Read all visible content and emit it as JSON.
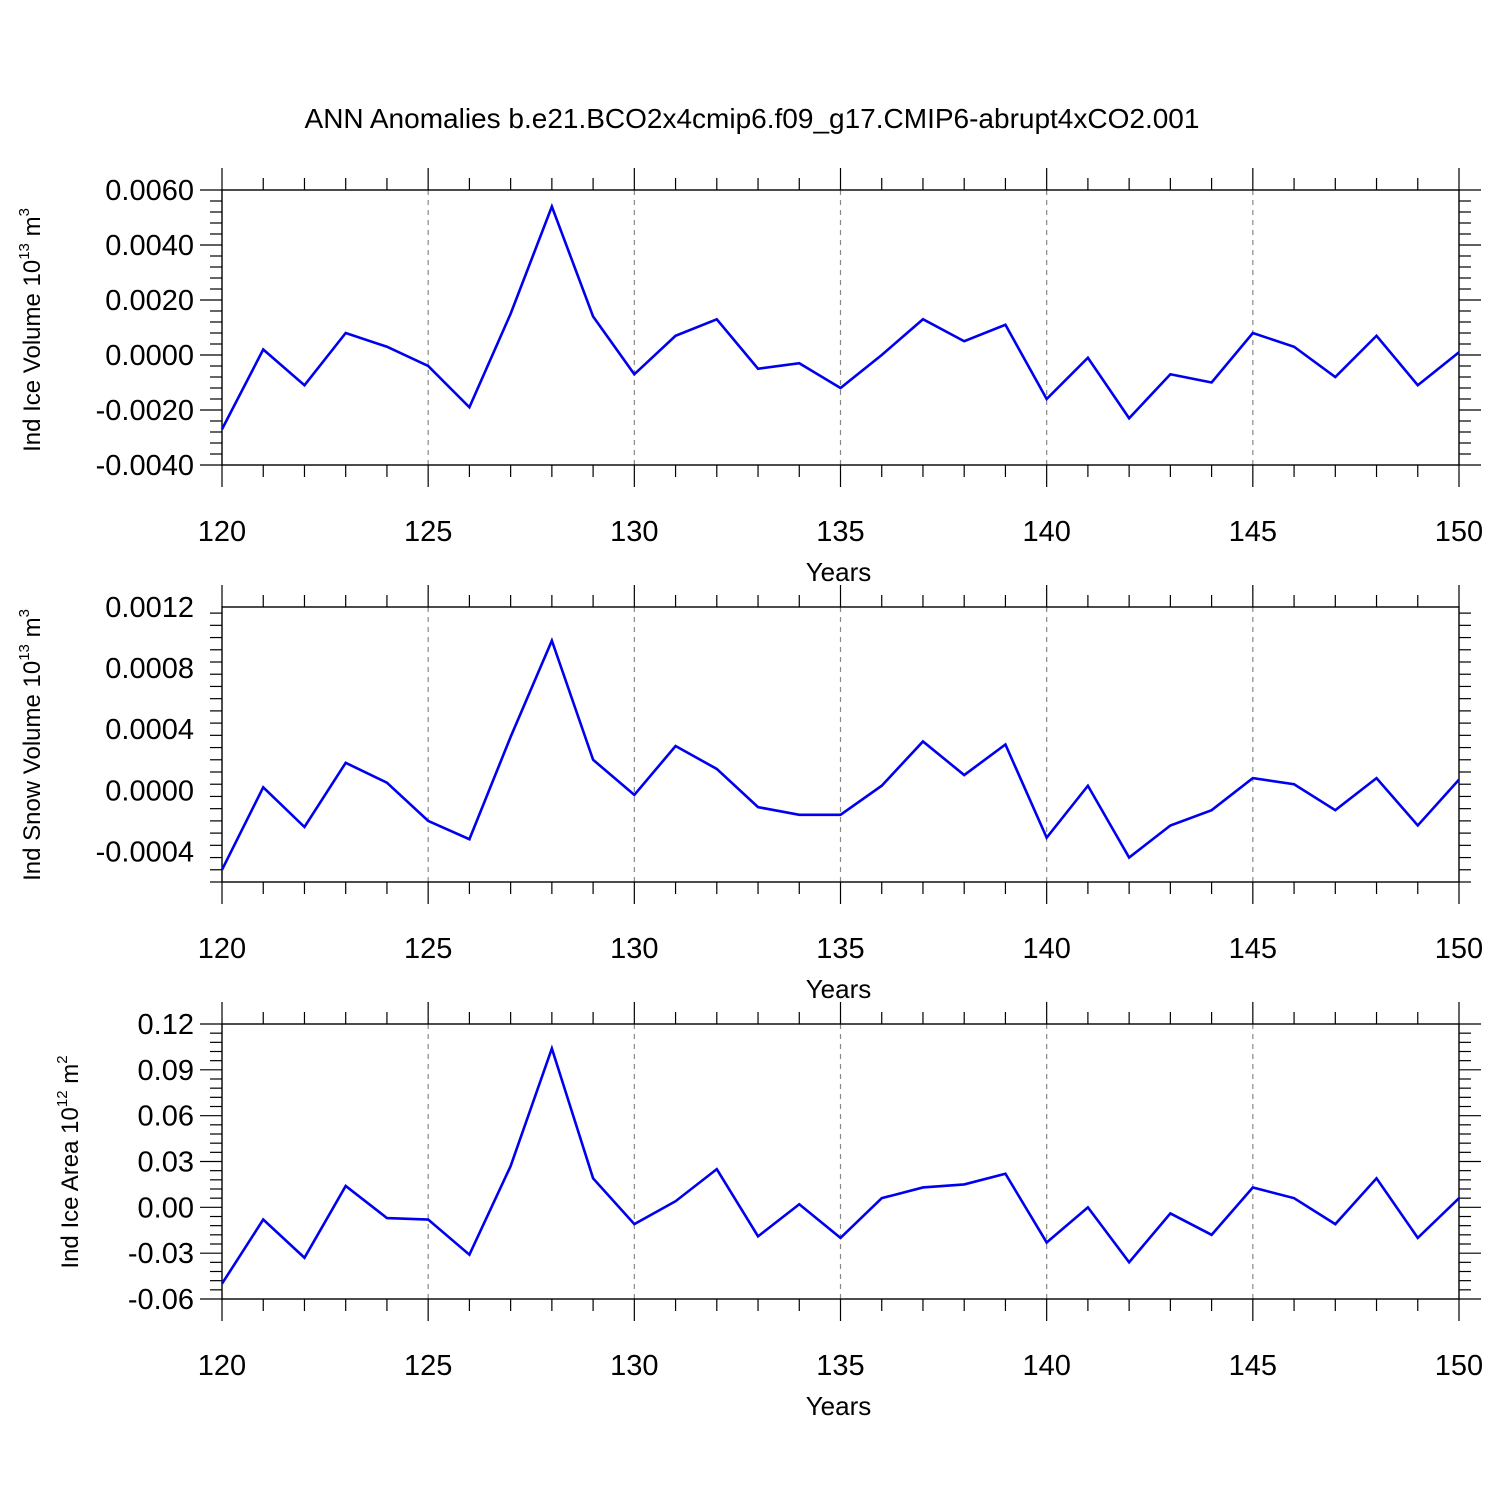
{
  "figure": {
    "title": "ANN Anomalies b.e21.BCO2x4cmip6.f09_g17.CMIP6-abrupt4xCO2.001"
  },
  "colors": {
    "line": "#0000ee",
    "axes": "#000000",
    "grid": "#888888"
  },
  "chart_data": [
    {
      "type": "line",
      "xlabel": "Years",
      "ylabel": {
        "text": "Ind Ice Volume 10",
        "sup": "13",
        "unit": " m",
        "unit_sup": "3"
      },
      "x": [
        120,
        121,
        122,
        123,
        124,
        125,
        126,
        127,
        128,
        129,
        130,
        131,
        132,
        133,
        134,
        135,
        136,
        137,
        138,
        139,
        140,
        141,
        142,
        143,
        144,
        145,
        146,
        147,
        148,
        149,
        150
      ],
      "series": [
        {
          "values": [
            -0.0027,
            0.0002,
            -0.0011,
            0.0008,
            0.0003,
            -0.0004,
            -0.0019,
            0.0015,
            0.0054,
            0.0014,
            -0.0007,
            0.0007,
            0.0013,
            -0.0005,
            -0.0003,
            -0.0012,
            0.0,
            0.0013,
            0.0005,
            0.0011,
            -0.0016,
            -0.0001,
            -0.0023,
            -0.0007,
            -0.001,
            0.0008,
            0.0003,
            -0.0008,
            0.0007,
            -0.0011,
            0.0001
          ]
        }
      ],
      "xlim": [
        120,
        150
      ],
      "ylim": [
        -0.004,
        0.006
      ],
      "xticks": [
        120,
        125,
        130,
        135,
        140,
        145,
        150
      ],
      "yticks": [
        -0.004,
        -0.002,
        0.0,
        0.002,
        0.004,
        0.006
      ],
      "ytick_labels": [
        "-0.0040",
        "-0.0020",
        "0.0000",
        "0.0020",
        "0.0040",
        "0.0060"
      ],
      "grid": "vertical dashed at major x ticks"
    },
    {
      "type": "line",
      "xlabel": "Years",
      "ylabel": {
        "text": "Ind Snow Volume 10",
        "sup": "13",
        "unit": " m",
        "unit_sup": "3"
      },
      "x": [
        120,
        121,
        122,
        123,
        124,
        125,
        126,
        127,
        128,
        129,
        130,
        131,
        132,
        133,
        134,
        135,
        136,
        137,
        138,
        139,
        140,
        141,
        142,
        143,
        144,
        145,
        146,
        147,
        148,
        149,
        150
      ],
      "series": [
        {
          "values": [
            -0.00052,
            2e-05,
            -0.00024,
            0.00018,
            5e-05,
            -0.0002,
            -0.00032,
            0.00035,
            0.00098,
            0.0002,
            -3e-05,
            0.00029,
            0.00014,
            -0.00011,
            -0.00016,
            -0.00016,
            3e-05,
            0.00032,
            0.0001,
            0.0003,
            -0.00031,
            3e-05,
            -0.00044,
            -0.00023,
            -0.00013,
            8e-05,
            4e-05,
            -0.00013,
            8e-05,
            -0.00023,
            7e-05
          ]
        }
      ],
      "xlim": [
        120,
        150
      ],
      "ylim": [
        -0.0006,
        0.0012
      ],
      "xticks": [
        120,
        125,
        130,
        135,
        140,
        145,
        150
      ],
      "yticks": [
        -0.0004,
        0.0,
        0.0004,
        0.0008,
        0.0012
      ],
      "ytick_labels": [
        "-0.0004",
        "0.0000",
        "0.0004",
        "0.0008",
        "0.0012"
      ],
      "grid": "vertical dashed at major x ticks"
    },
    {
      "type": "line",
      "xlabel": "Years",
      "ylabel": {
        "text": "Ind Ice Area 10",
        "sup": "12",
        "unit": " m",
        "unit_sup": "2"
      },
      "x": [
        120,
        121,
        122,
        123,
        124,
        125,
        126,
        127,
        128,
        129,
        130,
        131,
        132,
        133,
        134,
        135,
        136,
        137,
        138,
        139,
        140,
        141,
        142,
        143,
        144,
        145,
        146,
        147,
        148,
        149,
        150
      ],
      "series": [
        {
          "values": [
            -0.05,
            -0.008,
            -0.033,
            0.014,
            -0.007,
            -0.008,
            -0.031,
            0.027,
            0.104,
            0.019,
            -0.011,
            0.004,
            0.025,
            -0.019,
            0.002,
            -0.02,
            0.006,
            0.013,
            0.015,
            0.022,
            -0.023,
            0.0,
            -0.036,
            -0.004,
            -0.018,
            0.013,
            0.006,
            -0.011,
            0.019,
            -0.02,
            0.006
          ]
        }
      ],
      "xlim": [
        120,
        150
      ],
      "ylim": [
        -0.06,
        0.12
      ],
      "xticks": [
        120,
        125,
        130,
        135,
        140,
        145,
        150
      ],
      "yticks": [
        -0.06,
        -0.03,
        0.0,
        0.03,
        0.06,
        0.09,
        0.12
      ],
      "ytick_labels": [
        "-0.06",
        "-0.03",
        "0.00",
        "0.03",
        "0.06",
        "0.09",
        "0.12"
      ],
      "grid": "vertical dashed at major x ticks"
    }
  ]
}
